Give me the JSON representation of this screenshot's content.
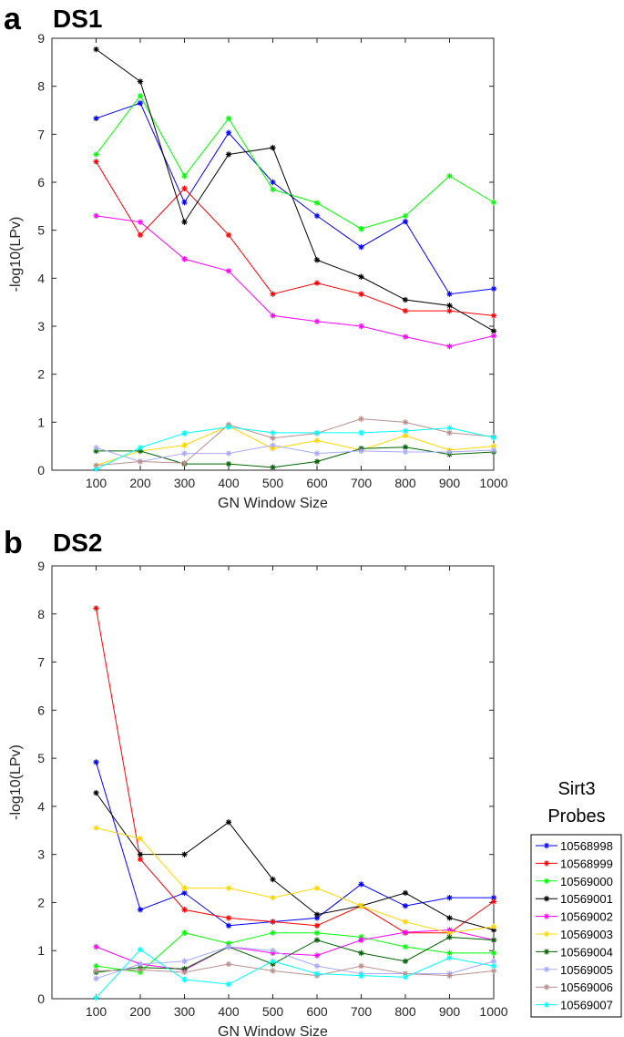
{
  "panels": [
    {
      "letter": "a",
      "title": "DS1"
    },
    {
      "letter": "b",
      "title": "DS2"
    }
  ],
  "legend": {
    "title_lines": [
      "Sirt3",
      "Probes"
    ]
  },
  "series_colors": [
    "#0000ff",
    "#ff0000",
    "#00ff00",
    "#000000",
    "#ff00ff",
    "#ffd700",
    "#006400",
    "#a9a9ff",
    "#bc8f8f",
    "#00ffff"
  ],
  "chart_data": [
    {
      "type": "line",
      "title": "DS1",
      "xlabel": "GN Window Size",
      "ylabel": "-log10(LPv)",
      "x": [
        100,
        200,
        300,
        400,
        500,
        600,
        700,
        800,
        900,
        1000
      ],
      "xlim": [
        0,
        1000
      ],
      "ylim": [
        0,
        9
      ],
      "yticks": [
        0,
        1,
        2,
        3,
        4,
        5,
        6,
        7,
        8,
        9
      ],
      "grid": false,
      "series": [
        {
          "name": "10568998",
          "values": [
            7.33,
            7.65,
            5.58,
            7.03,
            6.0,
            5.3,
            4.65,
            5.18,
            3.67,
            3.78
          ]
        },
        {
          "name": "10568999",
          "values": [
            6.43,
            4.9,
            5.87,
            4.9,
            3.67,
            3.9,
            3.67,
            3.32,
            3.32,
            3.22
          ]
        },
        {
          "name": "10569000",
          "values": [
            6.58,
            7.8,
            6.13,
            7.33,
            5.85,
            5.57,
            5.03,
            5.3,
            6.13,
            5.58
          ]
        },
        {
          "name": "10569001",
          "values": [
            8.77,
            8.1,
            5.17,
            6.58,
            6.72,
            4.38,
            4.03,
            3.55,
            3.43,
            2.9
          ]
        },
        {
          "name": "10569002",
          "values": [
            5.3,
            5.17,
            4.4,
            4.15,
            3.22,
            3.1,
            3.0,
            2.78,
            2.58,
            2.8
          ]
        },
        {
          "name": "10569003",
          "values": [
            0.1,
            0.4,
            0.52,
            0.92,
            0.45,
            0.62,
            0.42,
            0.72,
            0.42,
            0.5
          ]
        },
        {
          "name": "10569004",
          "values": [
            0.4,
            0.4,
            0.13,
            0.13,
            0.06,
            0.18,
            0.45,
            0.48,
            0.33,
            0.38
          ]
        },
        {
          "name": "10569005",
          "values": [
            0.47,
            0.18,
            0.35,
            0.35,
            0.52,
            0.35,
            0.4,
            0.38,
            0.38,
            0.42
          ]
        },
        {
          "name": "10569006",
          "values": [
            0.1,
            0.18,
            0.15,
            0.95,
            0.67,
            0.77,
            1.07,
            1.0,
            0.78,
            0.7
          ]
        },
        {
          "name": "10569007",
          "values": [
            0.02,
            0.47,
            0.77,
            0.9,
            0.78,
            0.78,
            0.78,
            0.82,
            0.88,
            0.68
          ]
        }
      ]
    },
    {
      "type": "line",
      "title": "DS2",
      "xlabel": "GN Window Size",
      "ylabel": "-log10(LPv)",
      "x": [
        100,
        200,
        300,
        400,
        500,
        600,
        700,
        800,
        900,
        1000
      ],
      "xlim": [
        0,
        1000
      ],
      "ylim": [
        0,
        9
      ],
      "yticks": [
        0,
        1,
        2,
        3,
        4,
        5,
        6,
        7,
        8,
        9
      ],
      "grid": false,
      "legend_position": "outside-right",
      "series": [
        {
          "name": "10568998",
          "values": [
            4.92,
            1.85,
            2.2,
            1.52,
            1.6,
            1.68,
            2.38,
            1.93,
            2.1,
            2.1
          ]
        },
        {
          "name": "10568999",
          "values": [
            8.12,
            2.9,
            1.85,
            1.68,
            1.6,
            1.52,
            1.93,
            1.37,
            1.37,
            2.02
          ]
        },
        {
          "name": "10569000",
          "values": [
            0.68,
            0.55,
            1.37,
            1.15,
            1.37,
            1.37,
            1.28,
            1.08,
            0.95,
            0.95
          ]
        },
        {
          "name": "10569001",
          "values": [
            4.28,
            3.0,
            3.0,
            3.67,
            2.48,
            1.75,
            1.93,
            2.2,
            1.68,
            1.43
          ]
        },
        {
          "name": "10569002",
          "values": [
            1.08,
            0.72,
            0.6,
            1.08,
            0.95,
            0.9,
            1.22,
            1.38,
            1.43,
            1.22
          ]
        },
        {
          "name": "10569003",
          "values": [
            3.55,
            3.33,
            2.3,
            2.3,
            2.1,
            2.3,
            1.93,
            1.6,
            1.37,
            1.5
          ]
        },
        {
          "name": "10569004",
          "values": [
            0.55,
            0.65,
            0.62,
            1.08,
            0.72,
            1.22,
            0.95,
            0.78,
            1.28,
            1.22
          ]
        },
        {
          "name": "10569005",
          "values": [
            0.42,
            0.72,
            0.78,
            1.08,
            1.0,
            0.68,
            0.52,
            0.52,
            0.52,
            0.78
          ]
        },
        {
          "name": "10569006",
          "values": [
            0.58,
            0.6,
            0.55,
            0.72,
            0.58,
            0.48,
            0.68,
            0.52,
            0.48,
            0.58
          ]
        },
        {
          "name": "10569007",
          "values": [
            0.02,
            1.02,
            0.4,
            0.3,
            0.78,
            0.52,
            0.48,
            0.45,
            0.85,
            0.68
          ]
        }
      ]
    }
  ]
}
